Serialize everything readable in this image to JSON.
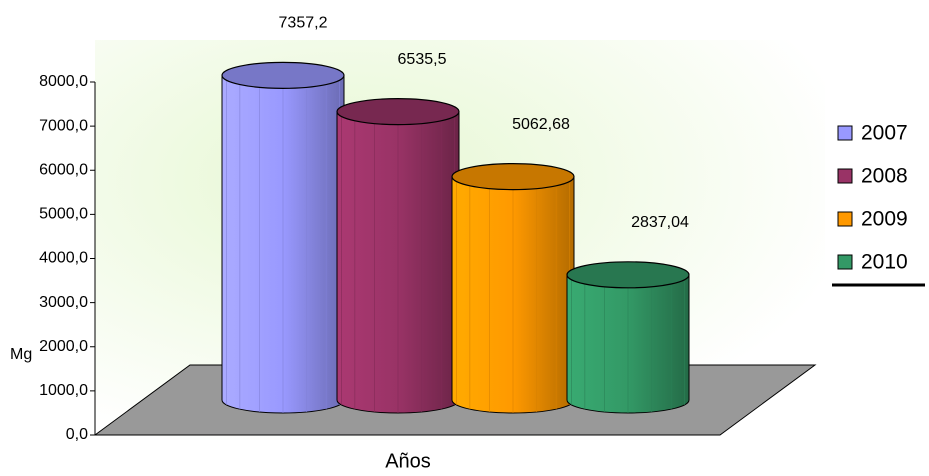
{
  "chart_data": {
    "type": "cylinder3d",
    "categories": [
      null
    ],
    "series": [
      {
        "name": "2007",
        "color": "#9999ff",
        "values": [
          7357.2
        ],
        "value_labels": [
          "7357,2"
        ]
      },
      {
        "name": "2008",
        "color": "#993366",
        "values": [
          6535.5
        ],
        "value_labels": [
          "6535,5"
        ]
      },
      {
        "name": "2009",
        "color": "#ff9900",
        "values": [
          5062.68
        ],
        "value_labels": [
          "5062,68"
        ]
      },
      {
        "name": "2010",
        "color": "#339966",
        "values": [
          2837.04
        ],
        "value_labels": [
          "2837,04"
        ]
      }
    ],
    "ylabel": "Mg",
    "xlabel": "Años",
    "ylim": [
      0,
      8000
    ],
    "yticks": [
      {
        "value": 0,
        "label": "0,0"
      },
      {
        "value": 1000,
        "label": "1000,0"
      },
      {
        "value": 2000,
        "label": "2000,0"
      },
      {
        "value": 3000,
        "label": "3000,0"
      },
      {
        "value": 4000,
        "label": "4000,0"
      },
      {
        "value": 5000,
        "label": "5000,0"
      },
      {
        "value": 6000,
        "label": "6000,0"
      },
      {
        "value": 7000,
        "label": "7000,0"
      },
      {
        "value": 8000,
        "label": "8000,0"
      }
    ],
    "legend": "right"
  }
}
